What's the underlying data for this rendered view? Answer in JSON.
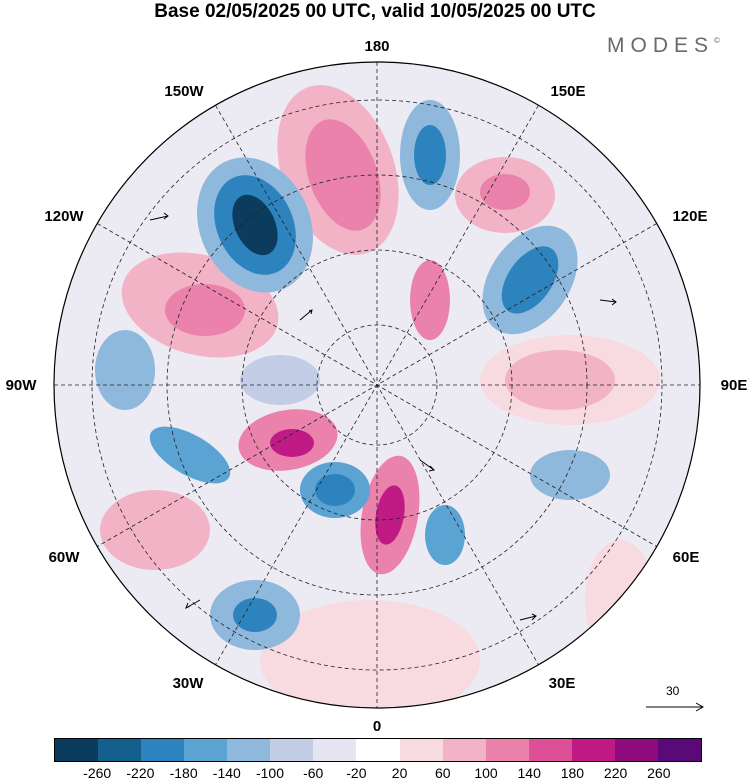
{
  "title": "Base 02/05/2025 00 UTC, valid 10/05/2025 00 UTC",
  "brand": "MODES",
  "brand_mark": "©",
  "longitude_labels": {
    "180": "180",
    "150E": "150E",
    "120E": "120E",
    "90E": "90E",
    "60E": "60E",
    "30E": "30E",
    "0": "0",
    "30W": "30W",
    "60W": "60W",
    "90W": "90W",
    "120W": "120W",
    "150W": "150W"
  },
  "reference_vector": {
    "label": "30"
  },
  "colorbar": {
    "colors": [
      "#0b3c5d",
      "#135f8d",
      "#2d83bd",
      "#5ba3d3",
      "#8fb8dd",
      "#c4cde6",
      "#e5e6f1",
      "#ffffff",
      "#f7dbe0",
      "#f3b3c6",
      "#ea82ab",
      "#dd4f97",
      "#c01b85",
      "#8e0b7c",
      "#5a0a78"
    ],
    "ticks": [
      "-260",
      "-220",
      "-180",
      "-140",
      "-100",
      "-60",
      "-20",
      "20",
      "60",
      "100",
      "140",
      "180",
      "220",
      "260"
    ]
  },
  "map_anomaly": {
    "pattern": "height anomaly lobes around polar stereographic projection",
    "negative_color": "#2d83bd",
    "positive_color": "#dd4f97"
  }
}
